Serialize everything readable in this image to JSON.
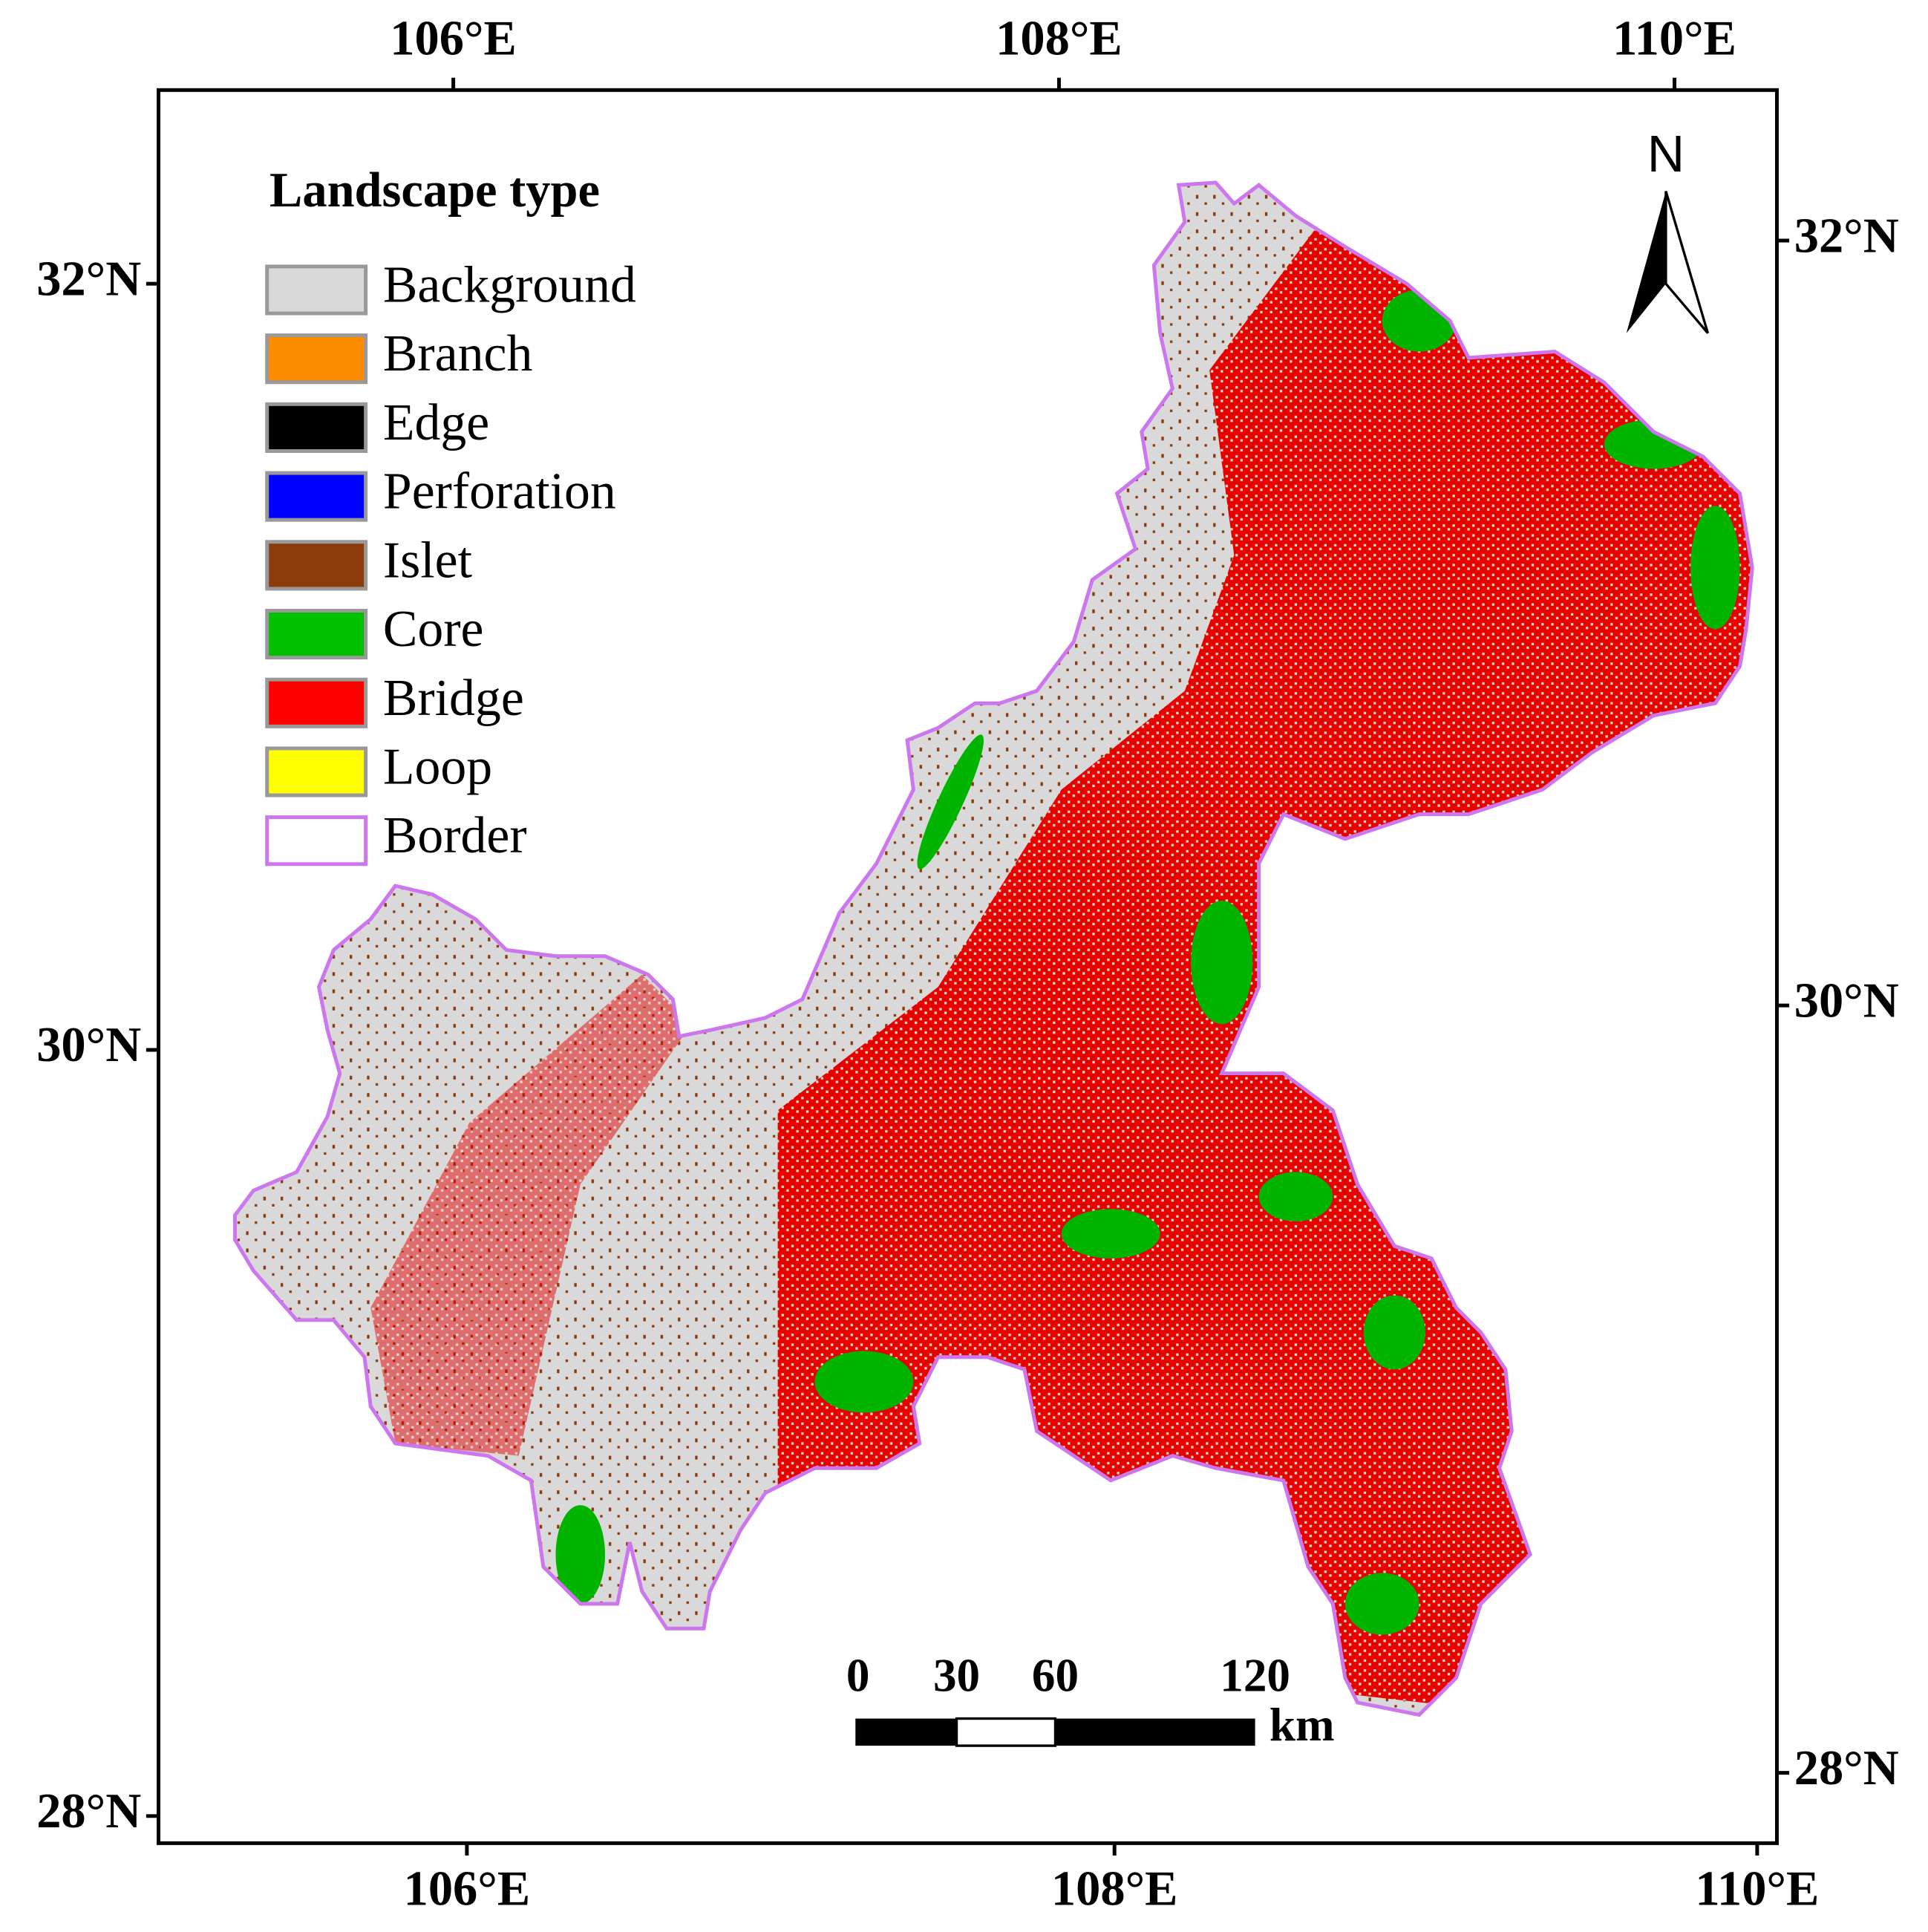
{
  "axes": {
    "top": [
      "106°E",
      "108°E",
      "110°E"
    ],
    "bottom": [
      "106°E",
      "108°E",
      "110°E"
    ],
    "left": [
      "32°N",
      "30°N",
      "28°N"
    ],
    "right": [
      "32°N",
      "30°N",
      "28°N"
    ]
  },
  "legend": {
    "title": "Landscape type",
    "items": [
      {
        "label": "Background",
        "fill": "#d9d9d9",
        "stroke": "#999999"
      },
      {
        "label": "Branch",
        "fill": "#ff8c00",
        "stroke": "#999999"
      },
      {
        "label": "Edge",
        "fill": "#000000",
        "stroke": "#999999"
      },
      {
        "label": "Perforation",
        "fill": "#0000ff",
        "stroke": "#999999"
      },
      {
        "label": "Islet",
        "fill": "#8b3a0a",
        "stroke": "#999999"
      },
      {
        "label": "Core",
        "fill": "#00c000",
        "stroke": "#999999"
      },
      {
        "label": "Bridge",
        "fill": "#ff0000",
        "stroke": "#999999"
      },
      {
        "label": "Loop",
        "fill": "#ffff00",
        "stroke": "#999999"
      },
      {
        "label": "Border",
        "fill": "#ffffff",
        "stroke": "#cc77ee"
      }
    ]
  },
  "north": "N",
  "scale_bar": {
    "labels": [
      "0",
      "30",
      "60",
      "120"
    ],
    "unit": "km"
  }
}
